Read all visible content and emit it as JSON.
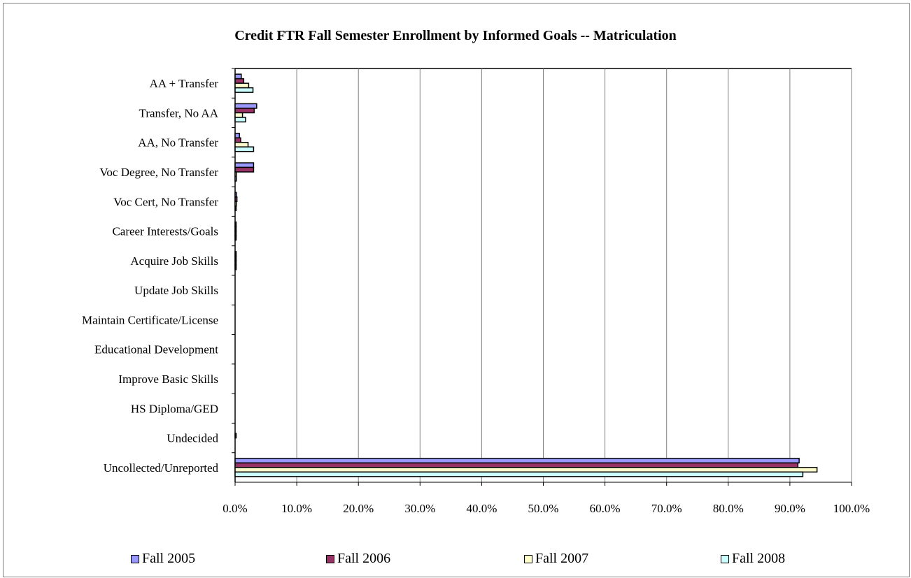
{
  "chart_data": {
    "type": "bar",
    "orientation": "horizontal",
    "title": "Credit FTR Fall Semester Enrollment by Informed Goals -- Matriculation",
    "xlabel": "",
    "ylabel": "",
    "xlim": [
      0,
      100
    ],
    "x_ticks": [
      "0.0%",
      "10.0%",
      "20.0%",
      "30.0%",
      "40.0%",
      "50.0%",
      "60.0%",
      "70.0%",
      "80.0%",
      "90.0%",
      "100.0%"
    ],
    "grid": "vertical",
    "legend_position": "bottom",
    "categories": [
      "AA + Transfer",
      "Transfer, No AA",
      "AA, No Transfer",
      "Voc Degree, No Transfer",
      "Voc Cert, No Transfer",
      "Career Interests/Goals",
      "Acquire Job Skills",
      "Update Job Skills",
      "Maintain Certificate/License",
      "Educational Development",
      "Improve Basic Skills",
      "HS Diploma/GED",
      "Undecided",
      "Uncollected/Unreported"
    ],
    "series": [
      {
        "name": "Fall 2005",
        "color": "#9999ff",
        "values": [
          1.0,
          3.5,
          0.7,
          3.0,
          0.2,
          0.1,
          0.1,
          0.0,
          0.0,
          0.0,
          0.0,
          0.0,
          0.0,
          91.5
        ]
      },
      {
        "name": "Fall 2006",
        "color": "#993366",
        "values": [
          1.4,
          3.1,
          0.9,
          3.0,
          0.3,
          0.1,
          0.1,
          0.0,
          0.0,
          0.0,
          0.0,
          0.0,
          0.1,
          91.3
        ]
      },
      {
        "name": "Fall 2007",
        "color": "#ffffcc",
        "values": [
          2.2,
          1.2,
          2.1,
          0.2,
          0.2,
          0.1,
          0.1,
          0.0,
          0.0,
          0.0,
          0.0,
          0.0,
          0.0,
          94.4
        ]
      },
      {
        "name": "Fall 2008",
        "color": "#ccffff",
        "values": [
          2.9,
          1.7,
          3.0,
          0.2,
          0.1,
          0.1,
          0.1,
          0.0,
          0.0,
          0.0,
          0.0,
          0.0,
          0.0,
          92.1
        ]
      }
    ]
  }
}
